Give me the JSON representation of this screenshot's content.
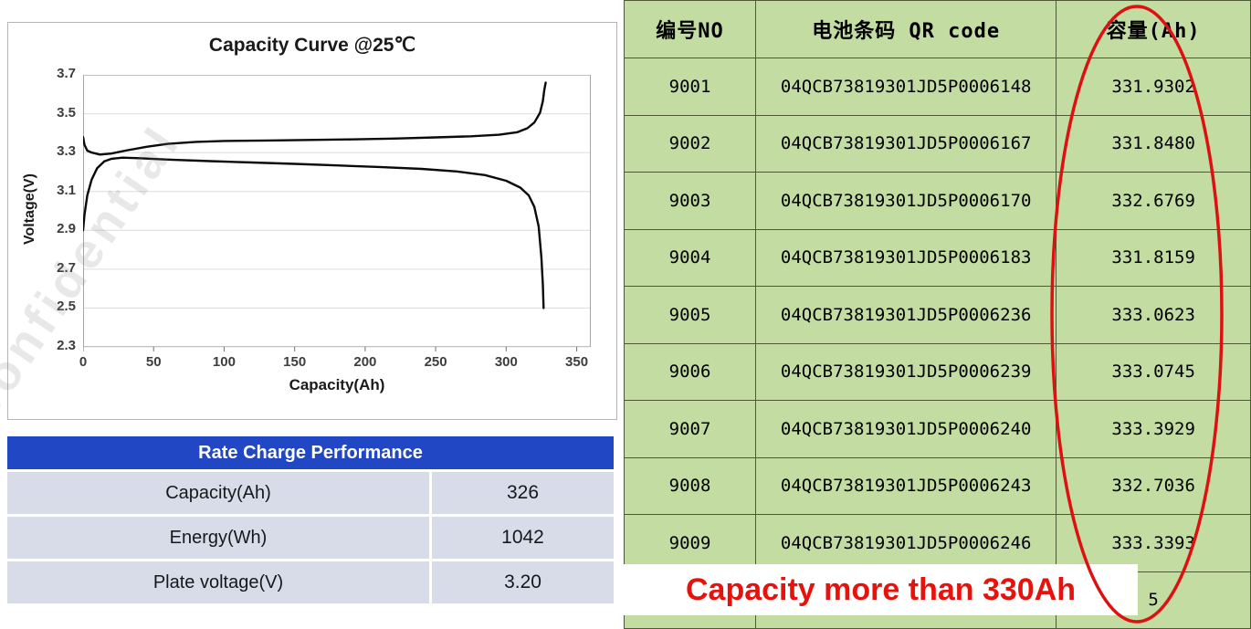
{
  "watermark": {
    "text": "Confidential"
  },
  "chart_data": {
    "type": "line",
    "title": "Capacity Curve @25℃",
    "xlabel": "Capacity(Ah)",
    "ylabel": "Voltage(V)",
    "xlim": [
      0,
      360
    ],
    "ylim": [
      2.3,
      3.7
    ],
    "x_ticks": [
      0,
      50,
      100,
      150,
      200,
      250,
      300,
      350
    ],
    "y_ticks": [
      3.7,
      3.5,
      3.3,
      3.1,
      2.9,
      2.7,
      2.5,
      2.3
    ],
    "grid": "horizontal",
    "legend": "none",
    "series": [
      {
        "name": "charge-curve",
        "points": [
          [
            0,
            3.38
          ],
          [
            1,
            3.34
          ],
          [
            3,
            3.31
          ],
          [
            6,
            3.3
          ],
          [
            12,
            3.29
          ],
          [
            20,
            3.295
          ],
          [
            30,
            3.31
          ],
          [
            45,
            3.33
          ],
          [
            60,
            3.345
          ],
          [
            80,
            3.355
          ],
          [
            100,
            3.36
          ],
          [
            130,
            3.362
          ],
          [
            160,
            3.365
          ],
          [
            190,
            3.368
          ],
          [
            220,
            3.372
          ],
          [
            250,
            3.378
          ],
          [
            275,
            3.384
          ],
          [
            295,
            3.392
          ],
          [
            308,
            3.405
          ],
          [
            315,
            3.425
          ],
          [
            320,
            3.455
          ],
          [
            324,
            3.505
          ],
          [
            326,
            3.565
          ],
          [
            327,
            3.62
          ],
          [
            328,
            3.66
          ]
        ]
      },
      {
        "name": "discharge-curve",
        "points": [
          [
            0,
            2.9
          ],
          [
            1,
            2.98
          ],
          [
            3,
            3.08
          ],
          [
            6,
            3.16
          ],
          [
            10,
            3.22
          ],
          [
            15,
            3.255
          ],
          [
            20,
            3.268
          ],
          [
            28,
            3.274
          ],
          [
            40,
            3.271
          ],
          [
            60,
            3.264
          ],
          [
            90,
            3.256
          ],
          [
            120,
            3.249
          ],
          [
            150,
            3.242
          ],
          [
            180,
            3.234
          ],
          [
            210,
            3.226
          ],
          [
            240,
            3.216
          ],
          [
            265,
            3.203
          ],
          [
            285,
            3.184
          ],
          [
            300,
            3.155
          ],
          [
            310,
            3.12
          ],
          [
            316,
            3.08
          ],
          [
            320,
            3.02
          ],
          [
            323,
            2.92
          ],
          [
            325,
            2.76
          ],
          [
            326,
            2.62
          ],
          [
            326.5,
            2.5
          ]
        ]
      }
    ]
  },
  "rate_table": {
    "title": "Rate Charge Performance",
    "rows": [
      {
        "label": "Capacity(Ah)",
        "value": "326"
      },
      {
        "label": "Energy(Wh)",
        "value": "1042"
      },
      {
        "label": "Plate voltage(V)",
        "value": "3.20"
      }
    ]
  },
  "battery_table": {
    "headers": [
      "编号NO",
      "电池条码 QR code",
      "容量(Ah)"
    ],
    "rows": [
      [
        "9001",
        "04QCB73819301JD5P0006148",
        "331.9302"
      ],
      [
        "9002",
        "04QCB73819301JD5P0006167",
        "331.8480"
      ],
      [
        "9003",
        "04QCB73819301JD5P0006170",
        "332.6769"
      ],
      [
        "9004",
        "04QCB73819301JD5P0006183",
        "331.8159"
      ],
      [
        "9005",
        "04QCB73819301JD5P0006236",
        "333.0623"
      ],
      [
        "9006",
        "04QCB73819301JD5P0006239",
        "333.0745"
      ],
      [
        "9007",
        "04QCB73819301JD5P0006240",
        "333.3929"
      ],
      [
        "9008",
        "04QCB73819301JD5P0006243",
        "332.7036"
      ],
      [
        "9009",
        "04QCB73819301JD5P0006246",
        "333.3393"
      ]
    ],
    "partial_row": [
      "",
      "",
      "5"
    ]
  },
  "callout": {
    "text": "Capacity more than 330Ah",
    "color": "#e8120c"
  },
  "colors": {
    "table_green": "#c2dca2",
    "table_border": "#4d5a33",
    "rate_header_blue": "#2147c4",
    "rate_row_bg": "#d8dce9",
    "highlight_red": "#dd1111",
    "curve_black": "#0a0a0a"
  }
}
